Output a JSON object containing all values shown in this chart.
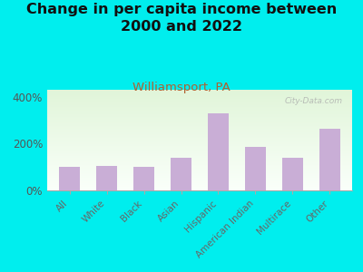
{
  "title": "Change in per capita income between\n2000 and 2022",
  "subtitle": "Williamsport, PA",
  "categories": [
    "All",
    "White",
    "Black",
    "Asian",
    "Hispanic",
    "American Indian",
    "Multirace",
    "Other"
  ],
  "values": [
    100,
    105,
    100,
    140,
    330,
    185,
    140,
    265
  ],
  "bar_color": "#c9aed6",
  "background_outer": "#00eeee",
  "title_fontsize": 11.5,
  "subtitle_fontsize": 9.5,
  "subtitle_color": "#b06030",
  "title_color": "#111111",
  "yticks": [
    0,
    200,
    400
  ],
  "ylim": [
    0,
    430
  ],
  "watermark": "City-Data.com"
}
